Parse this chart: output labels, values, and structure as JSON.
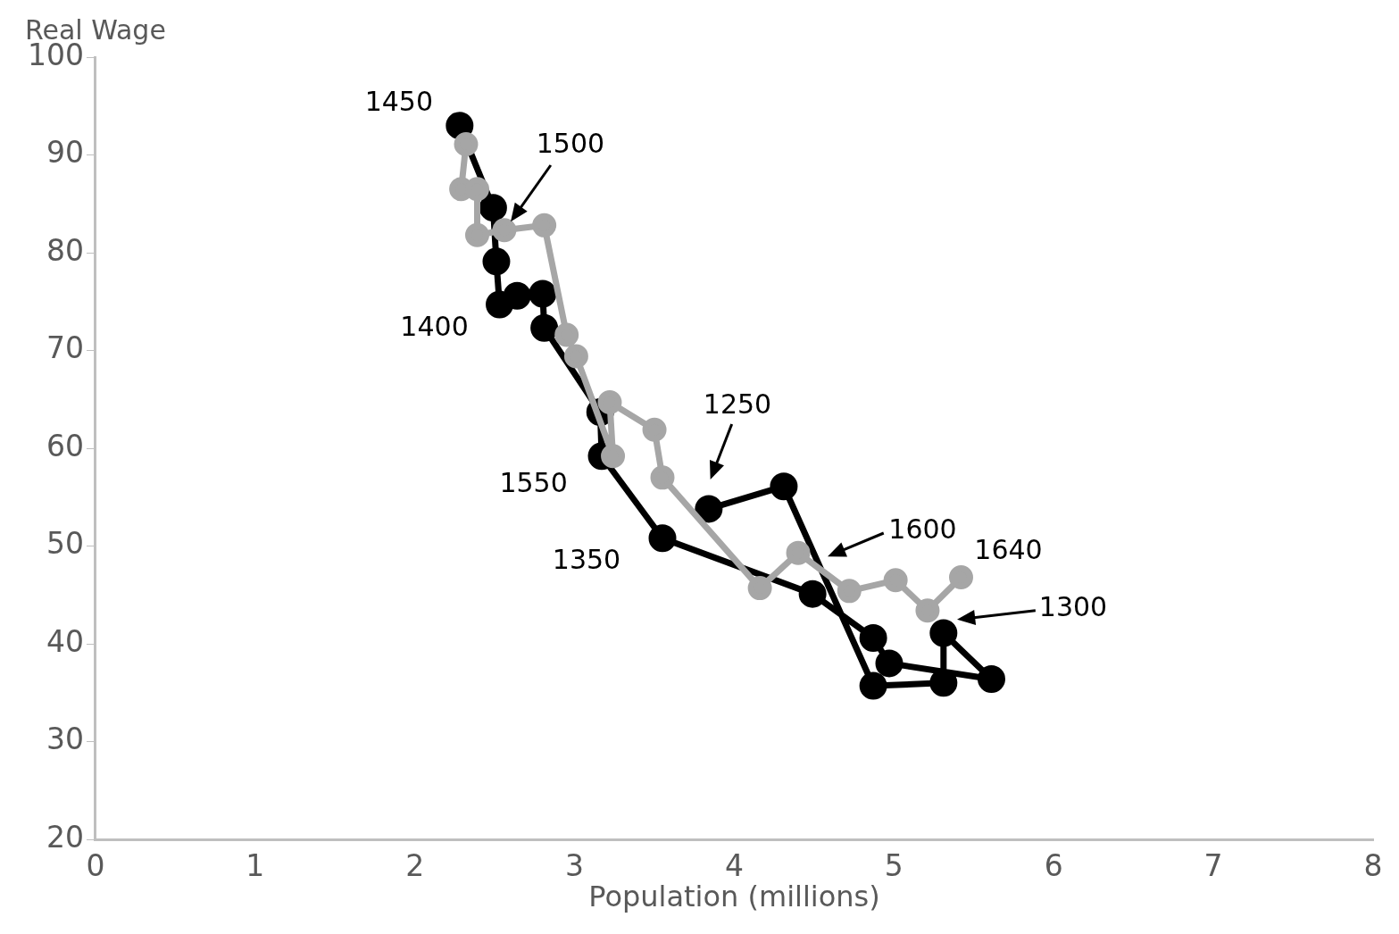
{
  "chart_data": {
    "type": "line",
    "xlabel": "Population (millions)",
    "ylabel": "Real Wage",
    "xlim": [
      0,
      8
    ],
    "xticks": [
      0,
      1,
      2,
      3,
      4,
      5,
      6,
      7,
      8
    ],
    "ylim": [
      20,
      100
    ],
    "yticks": [
      20,
      30,
      40,
      50,
      60,
      70,
      80,
      90,
      100
    ],
    "grid": false,
    "legend": false,
    "marker": "circle",
    "series": [
      {
        "color": "#000000",
        "x": [
          3.84,
          4.31,
          4.87,
          5.31,
          5.31,
          5.61,
          4.97,
          4.87,
          4.49,
          3.55,
          3.17,
          3.16,
          2.81,
          2.8,
          2.64,
          2.53,
          2.51,
          2.49,
          2.28
        ],
        "values": [
          53.8,
          56.1,
          35.7,
          36.0,
          41.1,
          36.4,
          38.0,
          40.6,
          45.1,
          50.8,
          59.2,
          63.7,
          72.3,
          75.8,
          75.6,
          74.7,
          79.1,
          84.6,
          93.0
        ]
      },
      {
        "color": "#a6a6a6",
        "x": [
          2.32,
          2.29,
          2.39,
          2.39,
          2.56,
          2.81,
          2.95,
          3.01,
          3.24,
          3.22,
          3.5,
          3.55,
          4.16,
          4.4,
          4.72,
          5.01,
          5.21,
          5.42
        ],
        "values": [
          91.1,
          86.5,
          86.5,
          81.8,
          82.3,
          82.8,
          71.6,
          69.4,
          59.2,
          64.7,
          61.9,
          57.0,
          45.7,
          49.3,
          45.4,
          46.5,
          43.4,
          46.8
        ]
      }
    ],
    "annotations": [
      {
        "text": "1450",
        "x": 2.28,
        "y": 93.0
      },
      {
        "text": "1500",
        "x": 2.56,
        "y": 82.3
      },
      {
        "text": "1400",
        "x": 2.53,
        "y": 74.7
      },
      "1250",
      {
        "text": "1550",
        "x": 3.24,
        "y": 59.2
      },
      {
        "text": "1350",
        "x": 3.55,
        "y": 50.8
      },
      {
        "text": "1600",
        "x": 4.52,
        "y": 48.5
      },
      {
        "text": "1640",
        "x": 5.42,
        "y": 46.8
      },
      "1300"
    ]
  }
}
